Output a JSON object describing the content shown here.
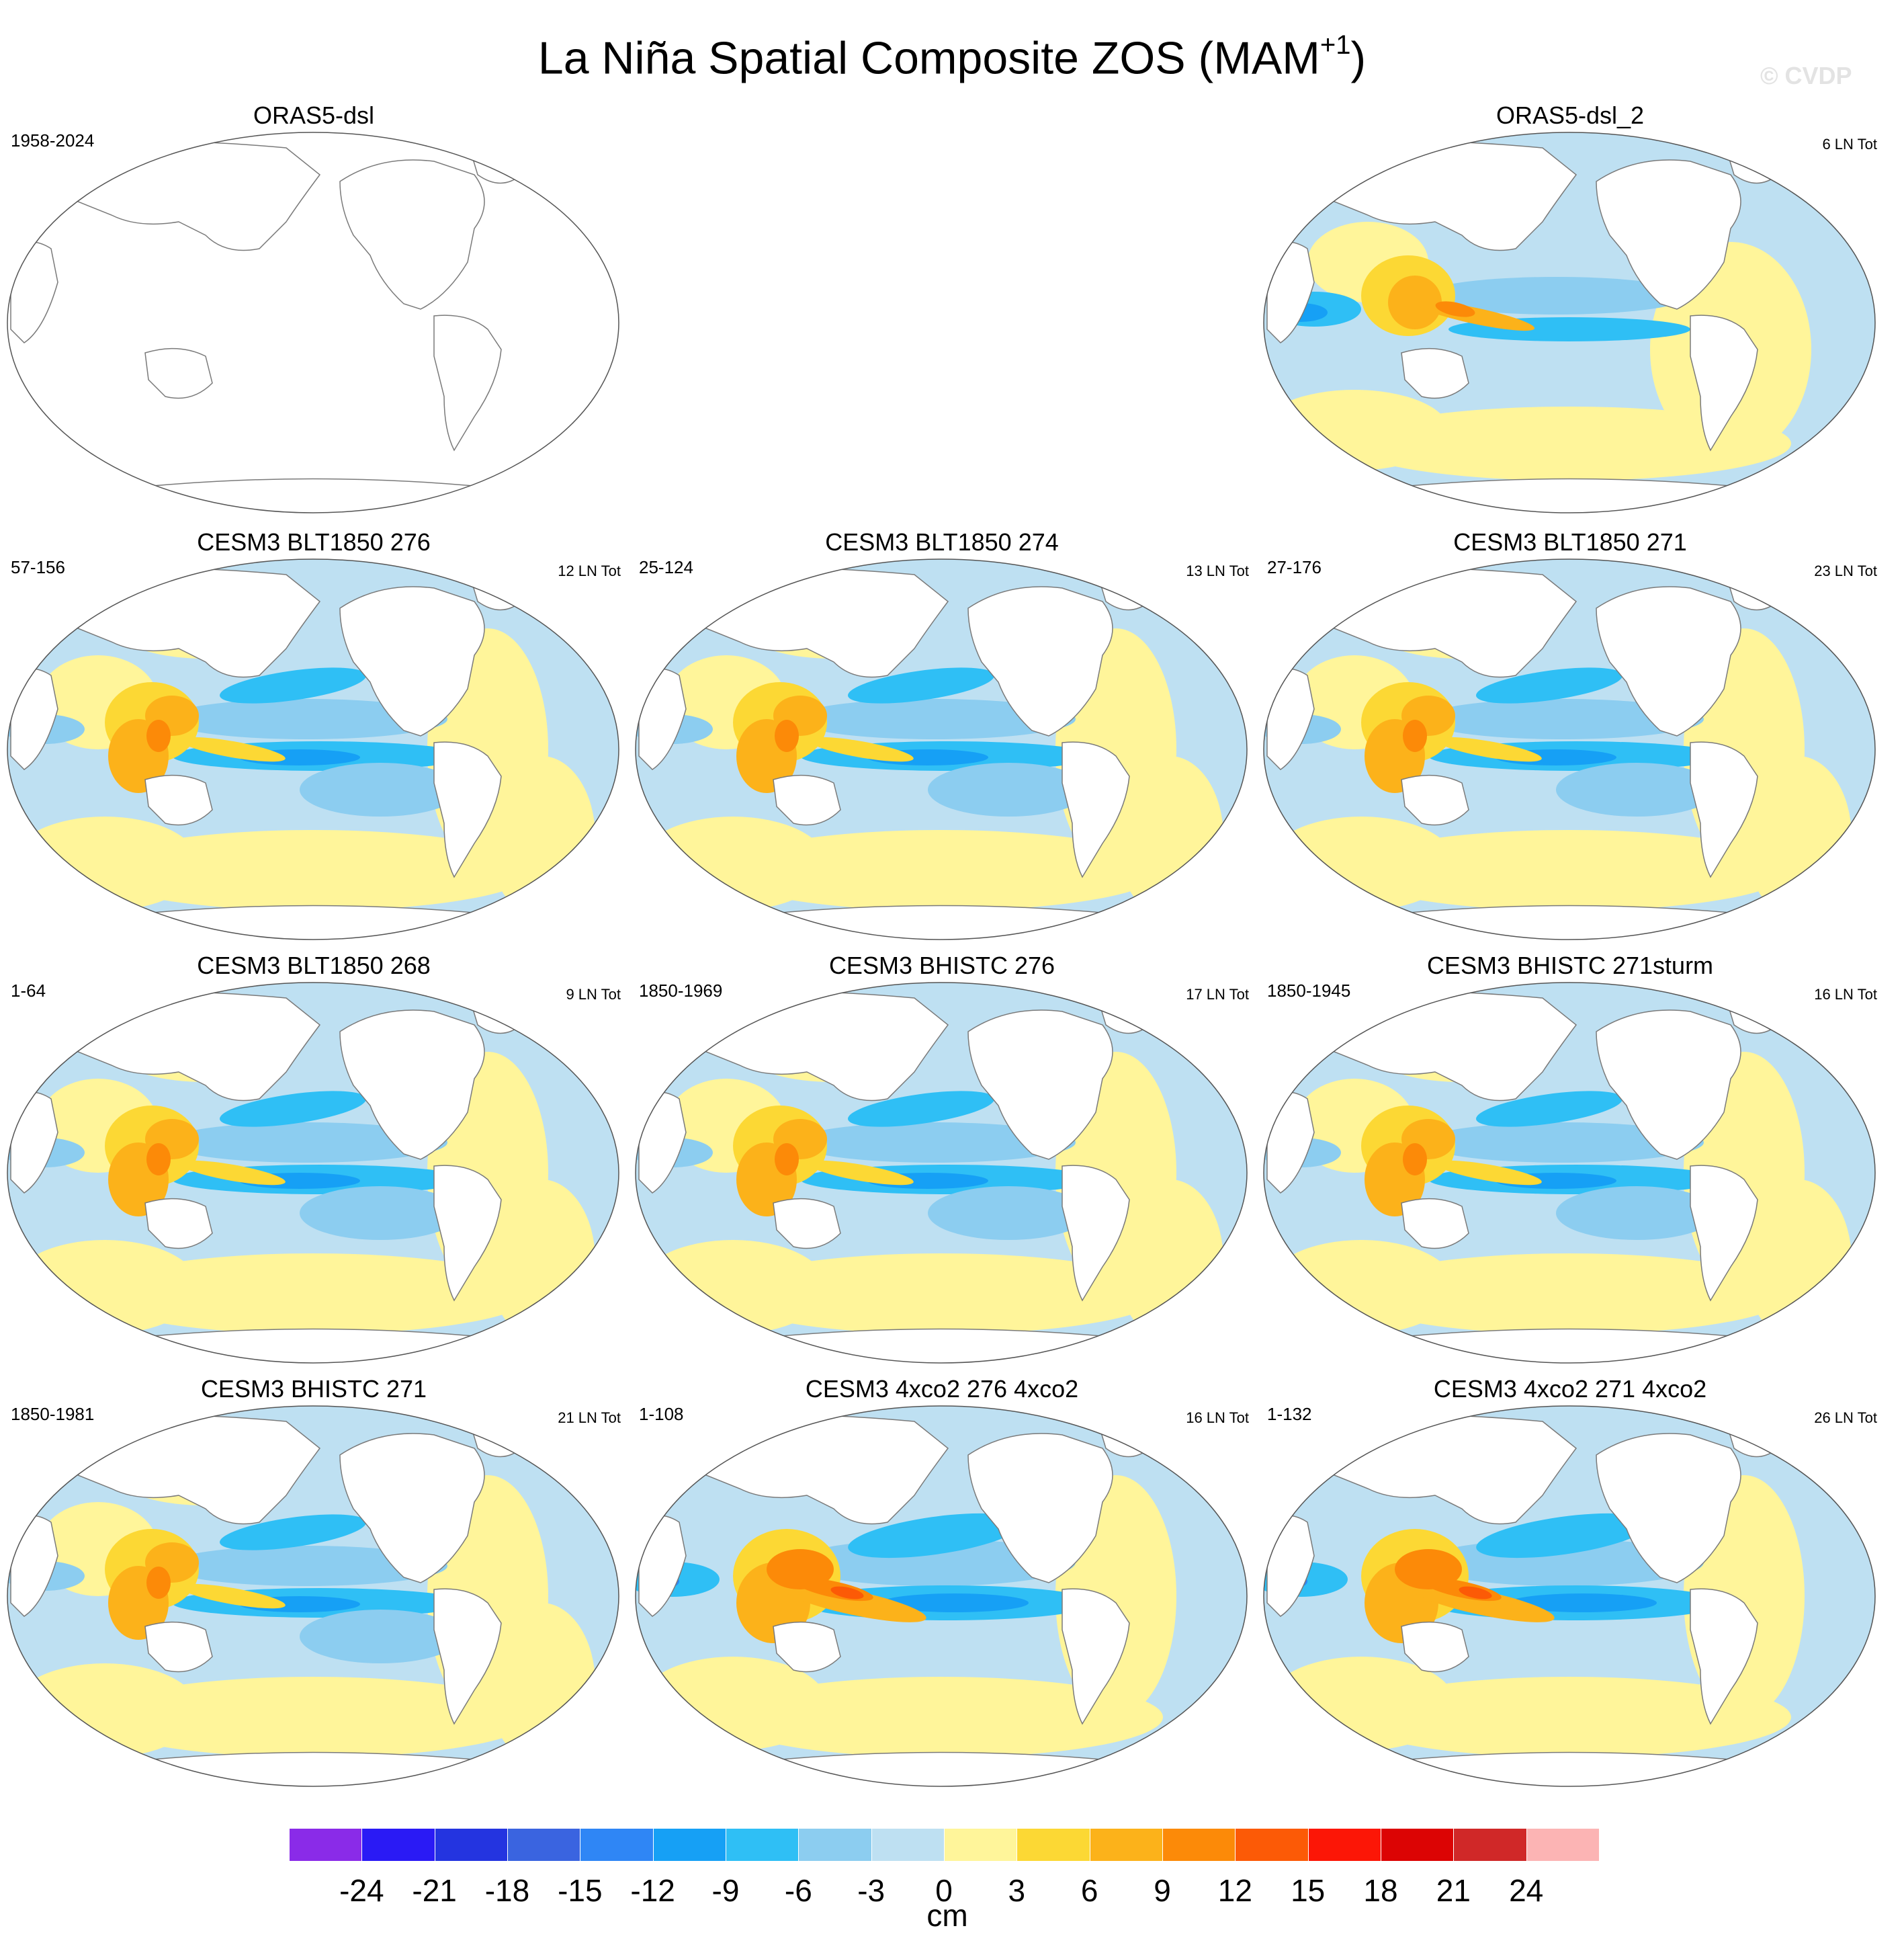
{
  "figure": {
    "title": "La Niña Spatial Composite ZOS (MAM",
    "title_superscript": "+1",
    "title_suffix": ")",
    "watermark": "© CVDP",
    "colorbar_unit": "cm"
  },
  "panels": [
    {
      "title": "ORAS5-dsl",
      "period": "1958-2024",
      "count": "",
      "empty": true
    },
    {
      "title": "ORAS5-dsl_2",
      "period": "",
      "count": "6 LN Tot",
      "empty": false
    },
    {
      "title": "CESM3 BLT1850 276",
      "period": "57-156",
      "count": "12 LN Tot",
      "empty": false
    },
    {
      "title": "CESM3 BLT1850 274",
      "period": "25-124",
      "count": "13 LN Tot",
      "empty": false
    },
    {
      "title": "CESM3 BLT1850 271",
      "period": "27-176",
      "count": "23 LN Tot",
      "empty": false
    },
    {
      "title": "CESM3 BLT1850 268",
      "period": "1-64",
      "count": "9 LN Tot",
      "empty": false
    },
    {
      "title": "CESM3 BHISTC 276",
      "period": "1850-1969",
      "count": "17 LN Tot",
      "empty": false
    },
    {
      "title": "CESM3 BHISTC 271sturm",
      "period": "1850-1945",
      "count": "16 LN Tot",
      "empty": false
    },
    {
      "title": "CESM3 BHISTC 271",
      "period": "1850-1981",
      "count": "21 LN Tot",
      "empty": false
    },
    {
      "title": "CESM3 4xco2 276 4xco2",
      "period": "1-108",
      "count": "16 LN Tot",
      "empty": false
    },
    {
      "title": "CESM3 4xco2 271 4xco2",
      "period": "1-132",
      "count": "26 LN Tot",
      "empty": false
    }
  ],
  "colorbar": {
    "colors": [
      "#8a2be8",
      "#2a1af5",
      "#2434e0",
      "#3a64e0",
      "#2f86f5",
      "#16a0f5",
      "#2fbff5",
      "#8ccdf0",
      "#bee0f2",
      "#fff59a",
      "#fcd834",
      "#fcb21a",
      "#fc8a08",
      "#fc5a06",
      "#fc1606",
      "#dc0404",
      "#d02828",
      "#fcb4b4"
    ],
    "labels": [
      "-24",
      "-21",
      "-18",
      "-15",
      "-12",
      "-9",
      "-6",
      "-3",
      "0",
      "3",
      "6",
      "9",
      "12",
      "15",
      "18",
      "21",
      "24"
    ]
  }
}
